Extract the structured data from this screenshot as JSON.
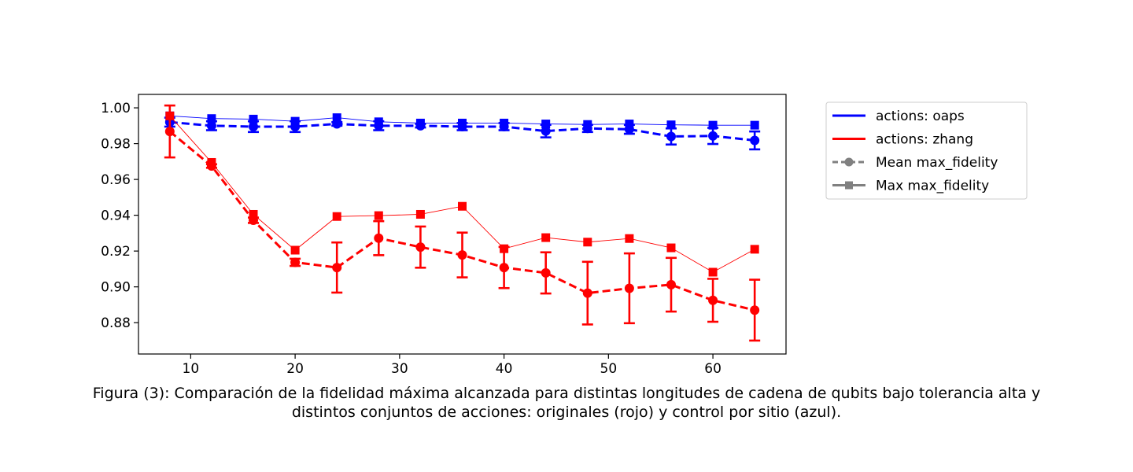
{
  "chart_data": {
    "type": "line",
    "title": "",
    "xlabel": "",
    "ylabel": "",
    "xlim": [
      5,
      67
    ],
    "ylim": [
      0.8625,
      1.0075
    ],
    "x_ticks": [
      10,
      20,
      30,
      40,
      50,
      60
    ],
    "y_ticks": [
      0.88,
      0.9,
      0.92,
      0.94,
      0.96,
      0.98,
      1.0
    ],
    "x_tick_labels": [
      "10",
      "20",
      "30",
      "40",
      "50",
      "60"
    ],
    "y_tick_labels": [
      "0.88",
      "0.90",
      "0.92",
      "0.94",
      "0.96",
      "0.98",
      "1.00"
    ],
    "grid": false,
    "legend_position": "outside-right-top",
    "x": [
      8,
      12,
      16,
      20,
      24,
      28,
      32,
      36,
      40,
      44,
      48,
      52,
      56,
      60,
      64
    ],
    "series": [
      {
        "name": "actions: oaps",
        "color": "#0000ff",
        "mean": [
          0.992,
          0.99,
          0.9895,
          0.9895,
          0.991,
          0.99,
          0.99,
          0.9895,
          0.9895,
          0.987,
          0.9885,
          0.988,
          0.984,
          0.9843,
          0.9818
        ],
        "mean_err": [
          0.0025,
          0.0025,
          0.003,
          0.003,
          0.001,
          0.0025,
          0.001,
          0.002,
          0.002,
          0.0035,
          0.002,
          0.0025,
          0.0045,
          0.0045,
          0.005
        ],
        "max": [
          0.9955,
          0.994,
          0.9937,
          0.9925,
          0.9945,
          0.9922,
          0.9915,
          0.9915,
          0.9915,
          0.991,
          0.9907,
          0.991,
          0.9905,
          0.9903,
          0.9903
        ]
      },
      {
        "name": "actions: zhang",
        "color": "#ff0000",
        "mean": [
          0.9868,
          0.9675,
          0.9372,
          0.9137,
          0.9108,
          0.9272,
          0.9222,
          0.9178,
          0.9108,
          0.9078,
          0.8965,
          0.8992,
          0.9012,
          0.8925,
          0.887
        ],
        "mean_err": [
          0.0145,
          0.001,
          0.0015,
          0.002,
          0.014,
          0.0095,
          0.0115,
          0.0125,
          0.0115,
          0.0115,
          0.0175,
          0.0195,
          0.015,
          0.012,
          0.017
        ],
        "max": [
          0.9955,
          0.9695,
          0.9405,
          0.9205,
          0.9393,
          0.9398,
          0.9405,
          0.945,
          0.9213,
          0.9275,
          0.925,
          0.927,
          0.9218,
          0.9082,
          0.921
        ]
      }
    ],
    "legend": [
      {
        "label": "actions: oaps",
        "color": "#0000ff",
        "style": "solid",
        "marker": "none"
      },
      {
        "label": "actions: zhang",
        "color": "#ff0000",
        "style": "solid",
        "marker": "none"
      },
      {
        "label": "Mean max_fidelity",
        "color": "#808080",
        "style": "dashed",
        "marker": "circle"
      },
      {
        "label": "Max max_fidelity",
        "color": "#808080",
        "style": "solid",
        "marker": "square"
      }
    ]
  },
  "caption": {
    "line1": "Figura (3): Comparación de la fidelidad máxima alcanzada para distintas longitudes de cadena de qubits bajo tolerancia alta y",
    "line2": "distintos conjuntos de acciones: originales (rojo) y control por sitio (azul)."
  }
}
